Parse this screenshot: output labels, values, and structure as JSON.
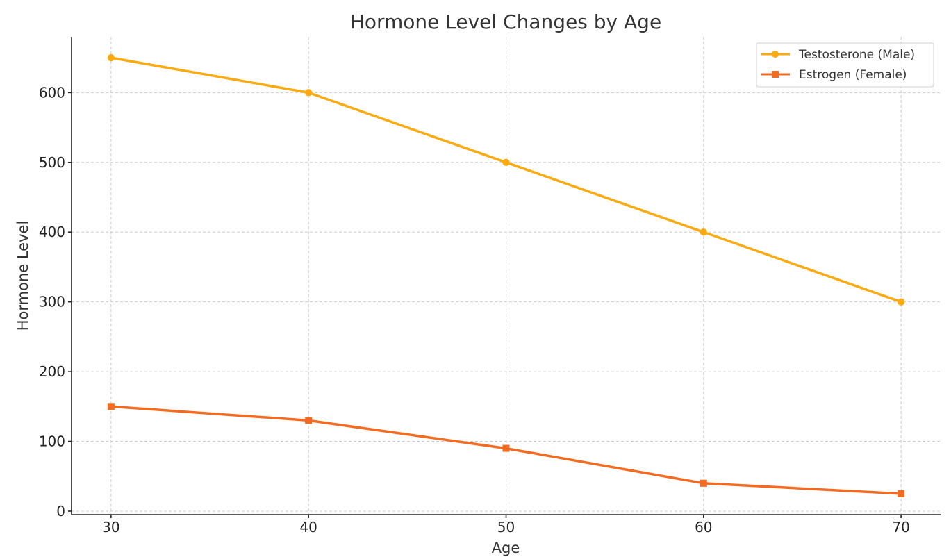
{
  "chart_data": {
    "type": "line",
    "title": "Hormone Level Changes by Age",
    "xlabel": "Age",
    "ylabel": "Hormone Level",
    "x": [
      30,
      40,
      50,
      60,
      70
    ],
    "xlim": [
      28,
      72
    ],
    "ylim": [
      -5,
      680
    ],
    "xticks": [
      30,
      40,
      50,
      60,
      70
    ],
    "yticks": [
      0,
      100,
      200,
      300,
      400,
      500,
      600
    ],
    "grid": true,
    "legend_position": "top-right",
    "series": [
      {
        "name": "Testosterone (Male)",
        "values": [
          650,
          600,
          500,
          400,
          300
        ],
        "color": "#FBAA11",
        "marker": "circle"
      },
      {
        "name": "Estrogen (Female)",
        "values": [
          150,
          130,
          90,
          40,
          25
        ],
        "color": "#F26B21",
        "marker": "square"
      }
    ]
  }
}
